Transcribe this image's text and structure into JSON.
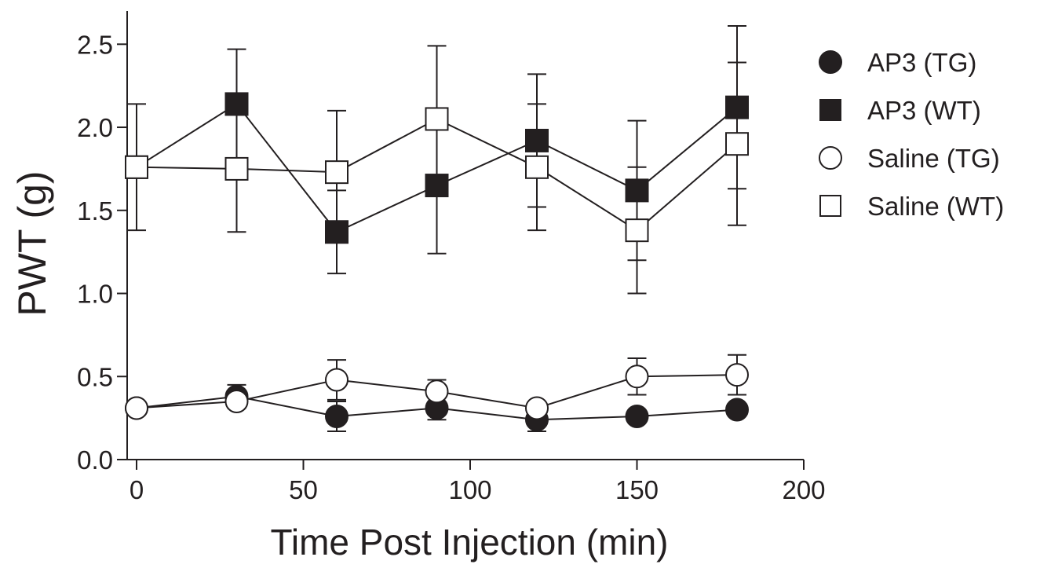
{
  "chart_data": {
    "type": "line",
    "title": "",
    "xlabel": "Time Post Injection (min)",
    "ylabel": "PWT (g)",
    "xlim": [
      0,
      200
    ],
    "ylim": [
      0,
      2.7
    ],
    "x_ticks": [
      "0",
      "50",
      "100",
      "150",
      "200"
    ],
    "y_ticks": [
      "0.0",
      "0.5",
      "1.0",
      "1.5",
      "2.0",
      "2.5"
    ],
    "grid": false,
    "legend_position": "top-right, outside plot",
    "x": [
      0,
      30,
      60,
      90,
      120,
      150,
      180
    ],
    "series": [
      {
        "name": "AP3 (TG)",
        "marker": "circle",
        "fill": "#231f20",
        "values": [
          0.31,
          0.38,
          0.26,
          0.31,
          0.24,
          0.26,
          0.3
        ],
        "error": [
          0.0,
          0.07,
          0.09,
          0.07,
          0.07,
          0.0,
          0.0
        ]
      },
      {
        "name": "AP3 (WT)",
        "marker": "square",
        "fill": "#231f20",
        "values": [
          1.76,
          2.14,
          1.37,
          1.65,
          1.92,
          1.62,
          2.12
        ],
        "error": [
          0.38,
          0.33,
          0.25,
          0.41,
          0.4,
          0.42,
          0.49
        ]
      },
      {
        "name": "Saline (TG)",
        "marker": "circle",
        "fill": "#ffffff",
        "values": [
          0.31,
          0.35,
          0.48,
          0.41,
          0.31,
          0.5,
          0.51
        ],
        "error": [
          0.0,
          0.0,
          0.12,
          0.07,
          0.0,
          0.11,
          0.12
        ]
      },
      {
        "name": "Saline (WT)",
        "marker": "square",
        "fill": "#ffffff",
        "values": [
          1.76,
          1.75,
          1.73,
          2.05,
          1.76,
          1.38,
          1.9
        ],
        "error": [
          0.0,
          0.38,
          0.37,
          0.44,
          0.38,
          0.38,
          0.49
        ]
      }
    ]
  }
}
